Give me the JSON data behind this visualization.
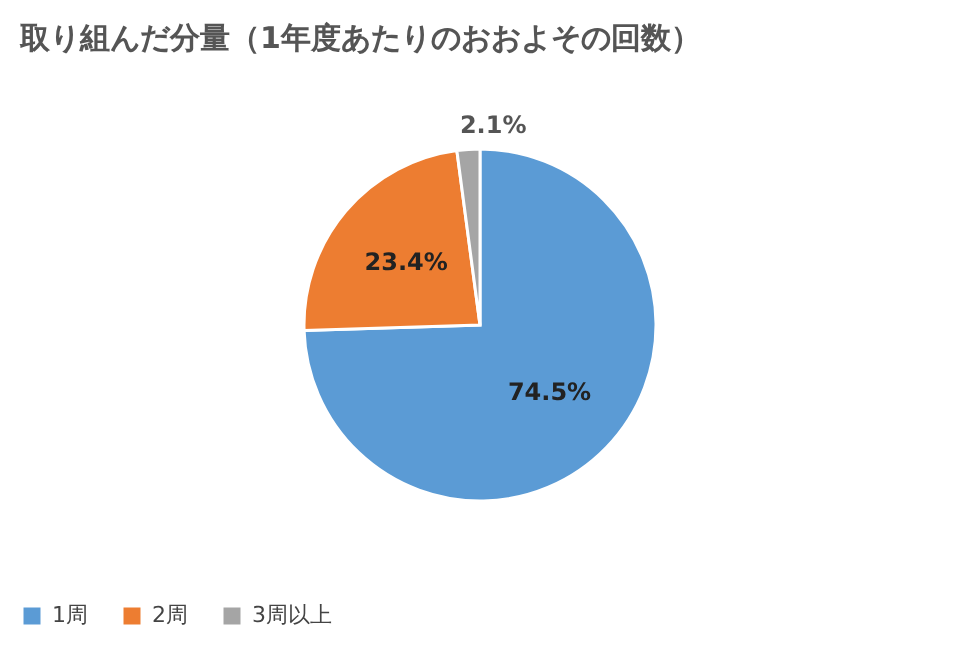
{
  "chart_data": {
    "type": "pie",
    "title": "取り組んだ分量（1年度あたりのおおよその回数）",
    "categories": [
      "1周",
      "2周",
      "3周以上"
    ],
    "values": [
      74.5,
      23.4,
      2.1
    ],
    "value_labels": [
      "74.5%",
      "23.4%",
      "2.1%"
    ],
    "colors": [
      "#5b9bd5",
      "#ed7d31",
      "#a5a5a5"
    ],
    "legend": "bottom"
  }
}
